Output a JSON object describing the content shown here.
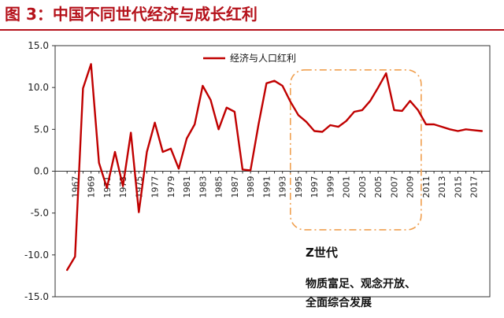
{
  "figure": {
    "title": "图 3：中国不同世代经济与成长红利"
  },
  "chart_data": {
    "type": "line",
    "ylim": [
      -15,
      15
    ],
    "yticks": [
      -15,
      -10,
      -5,
      0,
      5,
      10,
      15
    ],
    "ytick_labels": [
      "-15.0",
      "-10.0",
      "-5.0",
      "0.0",
      "5.0",
      "10.0",
      "15.0"
    ],
    "xticks": [
      "1967",
      "1969",
      "1971",
      "1973",
      "1975",
      "1977",
      "1979",
      "1981",
      "1983",
      "1985",
      "1987",
      "1989",
      "1991",
      "1993",
      "1995",
      "1997",
      "1999",
      "2001",
      "2003",
      "2005",
      "2007",
      "2009",
      "2011",
      "2013",
      "2015",
      "2017"
    ],
    "legend": {
      "position": "top-center"
    },
    "grid": false,
    "series": [
      {
        "name": "经济与人口红利",
        "color": "#c00000",
        "x": [
          1966,
          1967,
          1968,
          1969,
          1970,
          1971,
          1972,
          1973,
          1974,
          1975,
          1976,
          1977,
          1978,
          1979,
          1980,
          1981,
          1982,
          1983,
          1984,
          1985,
          1986,
          1987,
          1988,
          1989,
          1990,
          1991,
          1992,
          1993,
          1994,
          1995,
          1996,
          1997,
          1998,
          1999,
          2000,
          2001,
          2002,
          2003,
          2004,
          2005,
          2006,
          2007,
          2008,
          2009,
          2010,
          2011,
          2012,
          2013,
          2014,
          2015,
          2016,
          2017,
          2018
        ],
        "values": [
          -11.8,
          -10.2,
          9.9,
          12.8,
          1.0,
          -2.0,
          2.3,
          -1.8,
          4.6,
          -4.9,
          2.3,
          5.8,
          2.3,
          2.7,
          0.3,
          3.9,
          5.6,
          10.2,
          8.5,
          5.0,
          7.6,
          7.1,
          0.2,
          0.1,
          5.6,
          10.5,
          10.8,
          10.2,
          8.3,
          6.7,
          5.9,
          4.8,
          4.7,
          5.5,
          5.3,
          6.0,
          7.1,
          7.3,
          8.4,
          10.0,
          11.7,
          7.3,
          7.2,
          8.4,
          7.3,
          5.6,
          5.6,
          5.3,
          5.0,
          4.8,
          5.0,
          4.9,
          4.8
        ]
      }
    ],
    "annotations": [
      {
        "id": "z-generation",
        "label": "Z世代",
        "x_range": [
          1994,
          2010
        ],
        "style": "dash-dot rounded box",
        "color": "#f0a050"
      },
      {
        "id": "z-desc",
        "lines": [
          "物质富足、观念开放、",
          "全面综合发展"
        ]
      }
    ]
  }
}
